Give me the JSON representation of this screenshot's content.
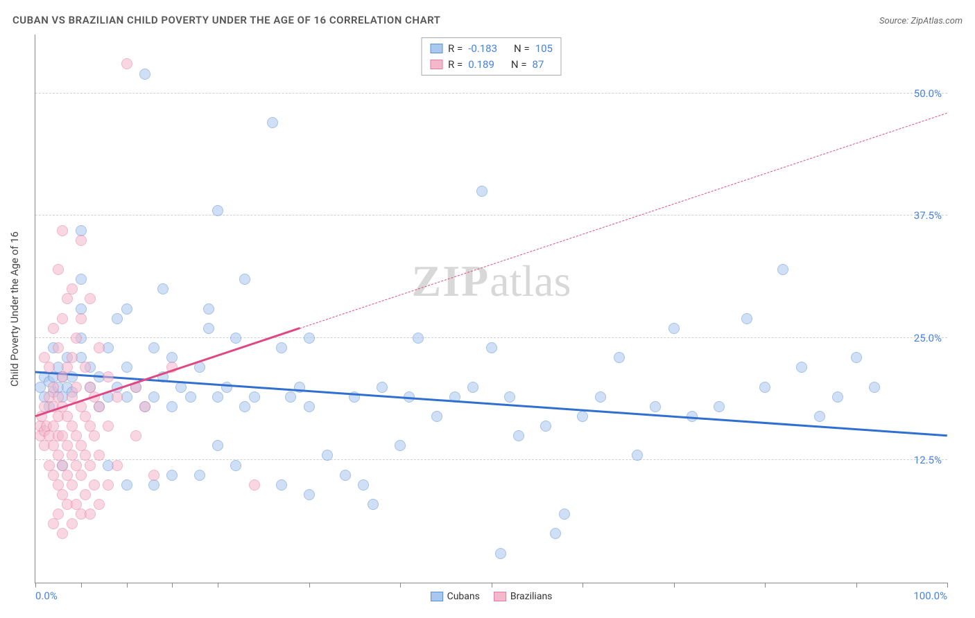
{
  "header": {
    "title": "CUBAN VS BRAZILIAN CHILD POVERTY UNDER THE AGE OF 16 CORRELATION CHART",
    "source_label": "Source:",
    "source_name": "ZipAtlas.com"
  },
  "watermark": {
    "left": "ZIP",
    "right": "atlas"
  },
  "chart": {
    "type": "scatter",
    "background_color": "#ffffff",
    "grid_color": "#d0d0d0",
    "axis_color": "#888888",
    "tick_label_color": "#4682e0",
    "tick_fontsize": 15,
    "xlim": [
      0,
      100
    ],
    "ylim": [
      0,
      56
    ],
    "y_axis_title": "Child Poverty Under the Age of 16",
    "y_gridlines": [
      12.5,
      25.0,
      37.5,
      50.0
    ],
    "y_tick_labels": [
      "12.5%",
      "25.0%",
      "37.5%",
      "50.0%"
    ],
    "x_ticks": [
      0,
      5,
      10,
      15,
      20,
      30,
      40,
      50,
      60,
      70,
      80,
      90,
      100
    ],
    "x_tick_labels": {
      "0": "0.0%",
      "100": "100.0%"
    },
    "marker_radius": 8,
    "marker_opacity": 0.55,
    "marker_stroke_width": 1,
    "series": [
      {
        "name": "Cubans",
        "fill": "#a9c8ef",
        "stroke": "#5b8fd6",
        "trend_color": "#2f6fd0",
        "trend_width": 3,
        "trend": {
          "x1": 0,
          "y1": 21.5,
          "x2": 100,
          "y2": 15.0
        },
        "R": -0.183,
        "N": 105,
        "points": [
          [
            0.5,
            20
          ],
          [
            1,
            19
          ],
          [
            1,
            21
          ],
          [
            1.5,
            18
          ],
          [
            1.5,
            20.5
          ],
          [
            2,
            19.5
          ],
          [
            2,
            21
          ],
          [
            2,
            24
          ],
          [
            2.5,
            20
          ],
          [
            2.5,
            22
          ],
          [
            3,
            12
          ],
          [
            3,
            19
          ],
          [
            3,
            21
          ],
          [
            3.5,
            20
          ],
          [
            3.5,
            23
          ],
          [
            4,
            19.5
          ],
          [
            4,
            21
          ],
          [
            5,
            23
          ],
          [
            5,
            25
          ],
          [
            5,
            28
          ],
          [
            5,
            31
          ],
          [
            5,
            36
          ],
          [
            6,
            20
          ],
          [
            6,
            22
          ],
          [
            7,
            18
          ],
          [
            7,
            21
          ],
          [
            8,
            12
          ],
          [
            8,
            19
          ],
          [
            8,
            24
          ],
          [
            9,
            20
          ],
          [
            9,
            27
          ],
          [
            10,
            10
          ],
          [
            10,
            19
          ],
          [
            10,
            22
          ],
          [
            10,
            28
          ],
          [
            11,
            20
          ],
          [
            12,
            18
          ],
          [
            12,
            52
          ],
          [
            13,
            10
          ],
          [
            13,
            19
          ],
          [
            13,
            24
          ],
          [
            14,
            21
          ],
          [
            14,
            30
          ],
          [
            15,
            11
          ],
          [
            15,
            18
          ],
          [
            15,
            23
          ],
          [
            16,
            20
          ],
          [
            17,
            19
          ],
          [
            18,
            11
          ],
          [
            18,
            22
          ],
          [
            19,
            26
          ],
          [
            19,
            28
          ],
          [
            20,
            14
          ],
          [
            20,
            19
          ],
          [
            20,
            38
          ],
          [
            21,
            20
          ],
          [
            22,
            12
          ],
          [
            22,
            25
          ],
          [
            23,
            18
          ],
          [
            23,
            31
          ],
          [
            24,
            19
          ],
          [
            26,
            47
          ],
          [
            27,
            10
          ],
          [
            27,
            24
          ],
          [
            28,
            19
          ],
          [
            29,
            20
          ],
          [
            30,
            9
          ],
          [
            30,
            18
          ],
          [
            30,
            25
          ],
          [
            32,
            13
          ],
          [
            34,
            11
          ],
          [
            35,
            19
          ],
          [
            36,
            10
          ],
          [
            37,
            8
          ],
          [
            38,
            20
          ],
          [
            40,
            14
          ],
          [
            41,
            19
          ],
          [
            42,
            25
          ],
          [
            44,
            17
          ],
          [
            46,
            19
          ],
          [
            48,
            20
          ],
          [
            49,
            40
          ],
          [
            50,
            24
          ],
          [
            51,
            3
          ],
          [
            52,
            19
          ],
          [
            53,
            15
          ],
          [
            56,
            16
          ],
          [
            57,
            5
          ],
          [
            58,
            7
          ],
          [
            60,
            17
          ],
          [
            62,
            19
          ],
          [
            64,
            23
          ],
          [
            66,
            13
          ],
          [
            68,
            18
          ],
          [
            70,
            26
          ],
          [
            72,
            17
          ],
          [
            75,
            18
          ],
          [
            78,
            27
          ],
          [
            80,
            20
          ],
          [
            82,
            32
          ],
          [
            84,
            22
          ],
          [
            86,
            17
          ],
          [
            88,
            19
          ],
          [
            90,
            23
          ],
          [
            92,
            20
          ]
        ]
      },
      {
        "name": "Brazilians",
        "fill": "#f4b8cb",
        "stroke": "#e77aa3",
        "trend_color": "#e04884",
        "trend_width": 2.5,
        "trend_solid": {
          "x1": 0,
          "y1": 17.0,
          "x2": 29,
          "y2": 26.0
        },
        "trend_dash": {
          "x1": 29,
          "y1": 26.0,
          "x2": 100,
          "y2": 48.0
        },
        "R": 0.189,
        "N": 87,
        "points": [
          [
            0.5,
            15
          ],
          [
            0.5,
            16
          ],
          [
            0.7,
            17
          ],
          [
            1,
            14
          ],
          [
            1,
            15.5
          ],
          [
            1,
            18
          ],
          [
            1,
            23
          ],
          [
            1.2,
            16
          ],
          [
            1.5,
            12
          ],
          [
            1.5,
            15
          ],
          [
            1.5,
            19
          ],
          [
            1.5,
            22
          ],
          [
            2,
            6
          ],
          [
            2,
            11
          ],
          [
            2,
            14
          ],
          [
            2,
            16
          ],
          [
            2,
            18
          ],
          [
            2,
            20
          ],
          [
            2,
            26
          ],
          [
            2.5,
            7
          ],
          [
            2.5,
            10
          ],
          [
            2.5,
            13
          ],
          [
            2.5,
            15
          ],
          [
            2.5,
            17
          ],
          [
            2.5,
            19
          ],
          [
            2.5,
            24
          ],
          [
            2.5,
            32
          ],
          [
            3,
            5
          ],
          [
            3,
            9
          ],
          [
            3,
            12
          ],
          [
            3,
            15
          ],
          [
            3,
            18
          ],
          [
            3,
            21
          ],
          [
            3,
            27
          ],
          [
            3,
            36
          ],
          [
            3.5,
            8
          ],
          [
            3.5,
            11
          ],
          [
            3.5,
            14
          ],
          [
            3.5,
            17
          ],
          [
            3.5,
            22
          ],
          [
            3.5,
            29
          ],
          [
            4,
            6
          ],
          [
            4,
            10
          ],
          [
            4,
            13
          ],
          [
            4,
            16
          ],
          [
            4,
            19
          ],
          [
            4,
            23
          ],
          [
            4,
            30
          ],
          [
            4.5,
            8
          ],
          [
            4.5,
            12
          ],
          [
            4.5,
            15
          ],
          [
            4.5,
            20
          ],
          [
            4.5,
            25
          ],
          [
            5,
            7
          ],
          [
            5,
            11
          ],
          [
            5,
            14
          ],
          [
            5,
            18
          ],
          [
            5,
            27
          ],
          [
            5,
            35
          ],
          [
            5.5,
            9
          ],
          [
            5.5,
            13
          ],
          [
            5.5,
            17
          ],
          [
            5.5,
            22
          ],
          [
            6,
            7
          ],
          [
            6,
            12
          ],
          [
            6,
            16
          ],
          [
            6,
            20
          ],
          [
            6,
            29
          ],
          [
            6.5,
            10
          ],
          [
            6.5,
            15
          ],
          [
            6.5,
            19
          ],
          [
            7,
            8
          ],
          [
            7,
            13
          ],
          [
            7,
            18
          ],
          [
            7,
            24
          ],
          [
            8,
            10
          ],
          [
            8,
            16
          ],
          [
            8,
            21
          ],
          [
            9,
            12
          ],
          [
            9,
            19
          ],
          [
            10,
            53
          ],
          [
            11,
            15
          ],
          [
            11,
            20
          ],
          [
            12,
            18
          ],
          [
            13,
            11
          ],
          [
            15,
            22
          ],
          [
            24,
            10
          ]
        ]
      }
    ],
    "stats_legend": {
      "R_label": "R =",
      "N_label": "N ="
    },
    "bottom_legend_labels": [
      "Cubans",
      "Brazilians"
    ]
  }
}
